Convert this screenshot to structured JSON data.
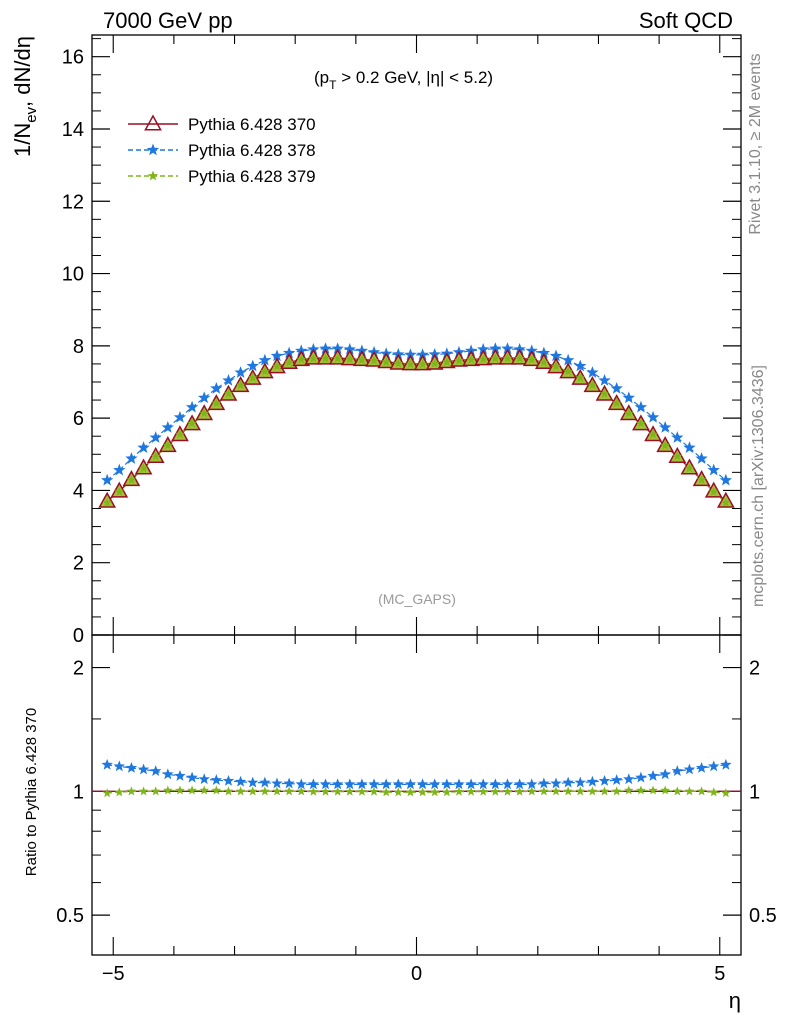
{
  "header": {
    "left": "7000 GeV pp",
    "right": "Soft QCD"
  },
  "side_labels": {
    "rivet": "Rivet 3.1.10, ≥ 2M events",
    "mcplots": "mcplots.cern.ch [arXiv:1306.3436]"
  },
  "annotations": {
    "cut": "(p_T > 0.2 GeV, |η| < 5.2)",
    "watermark": "(MC_GAPS)"
  },
  "main_ylabel": "1/N_ev, dN/dη",
  "ratio_ylabel": "Ratio to Pythia 6.428 370",
  "xlabel": "η",
  "colors": {
    "p370": "#9a0e24",
    "p378": "#1f77e0",
    "p379": "#7fb51a",
    "ref_marker_fill": "#a3c23c"
  },
  "chart_data": [
    {
      "type": "line",
      "panel": "main",
      "xlim": [
        -5.35,
        5.35
      ],
      "ylim": [
        0,
        16.6
      ],
      "y_ticks": [
        0,
        2,
        4,
        6,
        8,
        10,
        12,
        14,
        16
      ],
      "legend_position": "top-left",
      "x": [
        -5.1,
        -4.9,
        -4.7,
        -4.5,
        -4.3,
        -4.1,
        -3.9,
        -3.7,
        -3.5,
        -3.3,
        -3.1,
        -2.9,
        -2.7,
        -2.5,
        -2.3,
        -2.1,
        -1.9,
        -1.7,
        -1.5,
        -1.3,
        -1.1,
        -0.9,
        -0.7,
        -0.5,
        -0.3,
        -0.1,
        0.1,
        0.3,
        0.5,
        0.7,
        0.9,
        1.1,
        1.3,
        1.5,
        1.7,
        1.9,
        2.1,
        2.3,
        2.5,
        2.7,
        2.9,
        3.1,
        3.3,
        3.5,
        3.7,
        3.9,
        4.1,
        4.3,
        4.5,
        4.7,
        4.9,
        5.1
      ],
      "series": [
        {
          "name": "Pythia 6.428 370",
          "marker": "triangle",
          "values": [
            3.7,
            3.98,
            4.3,
            4.62,
            4.94,
            5.24,
            5.54,
            5.84,
            6.12,
            6.4,
            6.66,
            6.9,
            7.1,
            7.28,
            7.42,
            7.54,
            7.62,
            7.66,
            7.66,
            7.66,
            7.64,
            7.62,
            7.6,
            7.56,
            7.52,
            7.5,
            7.5,
            7.52,
            7.56,
            7.6,
            7.62,
            7.64,
            7.66,
            7.66,
            7.66,
            7.62,
            7.54,
            7.42,
            7.28,
            7.1,
            6.9,
            6.66,
            6.4,
            6.12,
            5.84,
            5.54,
            5.24,
            4.94,
            4.62,
            4.3,
            3.98,
            3.7
          ]
        },
        {
          "name": "Pythia 6.428 378",
          "marker": "star",
          "values": [
            4.28,
            4.56,
            4.88,
            5.18,
            5.46,
            5.74,
            6.02,
            6.3,
            6.56,
            6.82,
            7.04,
            7.26,
            7.44,
            7.6,
            7.72,
            7.8,
            7.86,
            7.9,
            7.92,
            7.92,
            7.9,
            7.86,
            7.82,
            7.78,
            7.76,
            7.75,
            7.75,
            7.76,
            7.78,
            7.82,
            7.86,
            7.9,
            7.92,
            7.92,
            7.9,
            7.86,
            7.8,
            7.72,
            7.6,
            7.44,
            7.26,
            7.04,
            6.82,
            6.56,
            6.3,
            6.02,
            5.74,
            5.46,
            5.18,
            4.88,
            4.56,
            4.28
          ]
        },
        {
          "name": "Pythia 6.428 379",
          "marker": "star",
          "values": [
            3.66,
            3.96,
            4.29,
            4.61,
            4.94,
            5.24,
            5.55,
            5.85,
            6.13,
            6.41,
            6.67,
            6.91,
            7.11,
            7.29,
            7.43,
            7.54,
            7.62,
            7.65,
            7.65,
            7.65,
            7.63,
            7.61,
            7.59,
            7.55,
            7.51,
            7.49,
            7.49,
            7.51,
            7.55,
            7.59,
            7.61,
            7.63,
            7.65,
            7.65,
            7.65,
            7.62,
            7.54,
            7.43,
            7.29,
            7.11,
            6.91,
            6.67,
            6.41,
            6.13,
            5.85,
            5.55,
            5.24,
            4.94,
            4.61,
            4.29,
            3.96,
            3.66
          ]
        }
      ]
    },
    {
      "type": "line",
      "panel": "ratio",
      "xlim": [
        -5.35,
        5.35
      ],
      "ylim": [
        0.4,
        2.4
      ],
      "log_y": true,
      "y_ticks": [
        0.5,
        1,
        2
      ],
      "x_ticks": [
        -5,
        0,
        5
      ],
      "reference_line": 1,
      "x": [
        -5.1,
        -4.9,
        -4.7,
        -4.5,
        -4.3,
        -4.1,
        -3.9,
        -3.7,
        -3.5,
        -3.3,
        -3.1,
        -2.9,
        -2.7,
        -2.5,
        -2.3,
        -2.1,
        -1.9,
        -1.7,
        -1.5,
        -1.3,
        -1.1,
        -0.9,
        -0.7,
        -0.5,
        -0.3,
        -0.1,
        0.1,
        0.3,
        0.5,
        0.7,
        0.9,
        1.1,
        1.3,
        1.5,
        1.7,
        1.9,
        2.1,
        2.3,
        2.5,
        2.7,
        2.9,
        3.1,
        3.3,
        3.5,
        3.7,
        3.9,
        4.1,
        4.3,
        4.5,
        4.7,
        4.9,
        5.1
      ],
      "series": [
        {
          "name": "Pythia 6.428 378",
          "values": [
            1.16,
            1.15,
            1.14,
            1.13,
            1.12,
            1.1,
            1.09,
            1.08,
            1.07,
            1.065,
            1.06,
            1.055,
            1.05,
            1.05,
            1.045,
            1.045,
            1.04,
            1.04,
            1.04,
            1.04,
            1.04,
            1.04,
            1.04,
            1.04,
            1.04,
            1.04,
            1.04,
            1.04,
            1.04,
            1.04,
            1.04,
            1.04,
            1.04,
            1.04,
            1.04,
            1.04,
            1.045,
            1.045,
            1.05,
            1.05,
            1.055,
            1.06,
            1.065,
            1.07,
            1.08,
            1.09,
            1.1,
            1.12,
            1.13,
            1.14,
            1.15,
            1.16
          ]
        },
        {
          "name": "Pythia 6.428 379",
          "values": [
            0.99,
            0.995,
            1.0,
            1.0,
            1.0,
            1.005,
            1.005,
            1.005,
            1.005,
            1.005,
            1.0,
            1.0,
            1.0,
            1.0,
            1.0,
            1.0,
            1.0,
            0.998,
            0.998,
            0.998,
            0.998,
            0.998,
            0.998,
            0.995,
            0.995,
            0.995,
            0.995,
            0.995,
            0.995,
            0.998,
            0.998,
            0.998,
            0.998,
            0.998,
            0.998,
            1.0,
            1.0,
            1.0,
            1.0,
            1.0,
            1.0,
            1.0,
            1.0,
            1.005,
            1.005,
            1.005,
            1.005,
            1.0,
            1.0,
            1.0,
            0.995,
            0.99
          ]
        }
      ]
    }
  ]
}
